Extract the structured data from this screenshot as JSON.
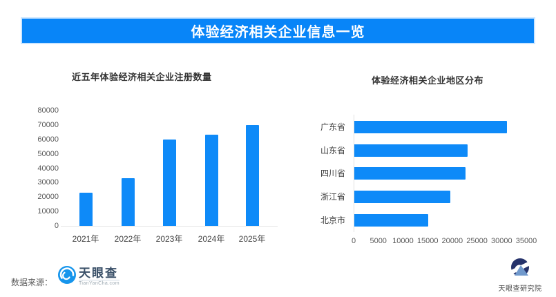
{
  "banner": {
    "title": "体验经济相关企业信息一览"
  },
  "colors": {
    "accent": "#0885f8",
    "bar": "#0e8af8",
    "axis_line": "#e4e4e4",
    "title_text": "#333333",
    "axis_text": "#595959",
    "logo_blue": "#1695ec",
    "institute_navy": "#26336b",
    "institute_light_blue": "#7099cc"
  },
  "chart_data": [
    {
      "type": "bar",
      "orientation": "vertical",
      "title": "近五年体验经济相关企业注册数量",
      "categories": [
        "2021年",
        "2022年",
        "2023年",
        "2024年",
        "2025年"
      ],
      "values": [
        23000,
        33000,
        60000,
        63000,
        70000
      ],
      "y_ticks": [
        0,
        10000,
        20000,
        30000,
        40000,
        50000,
        60000,
        70000,
        80000
      ],
      "ylim": [
        0,
        80000
      ],
      "xlabel": "",
      "ylabel": "",
      "grid": false,
      "legend": "none"
    },
    {
      "type": "bar",
      "orientation": "horizontal",
      "title": "体验经济相关企业地区分布",
      "categories": [
        "广东省",
        "山东省",
        "四川省",
        "浙江省",
        "北京市"
      ],
      "values": [
        31000,
        23000,
        22500,
        19500,
        15000
      ],
      "x_ticks": [
        0,
        5000,
        10000,
        15000,
        20000,
        25000,
        30000,
        35000
      ],
      "xlim": [
        0,
        35000
      ],
      "xlabel": "",
      "ylabel": "",
      "grid": false,
      "legend": "none"
    }
  ],
  "footer": {
    "source_label": "数据来源：",
    "tyc_name": "天眼查",
    "tyc_domain": "TianYanCha.com",
    "institute_name": "天眼查研究院"
  }
}
